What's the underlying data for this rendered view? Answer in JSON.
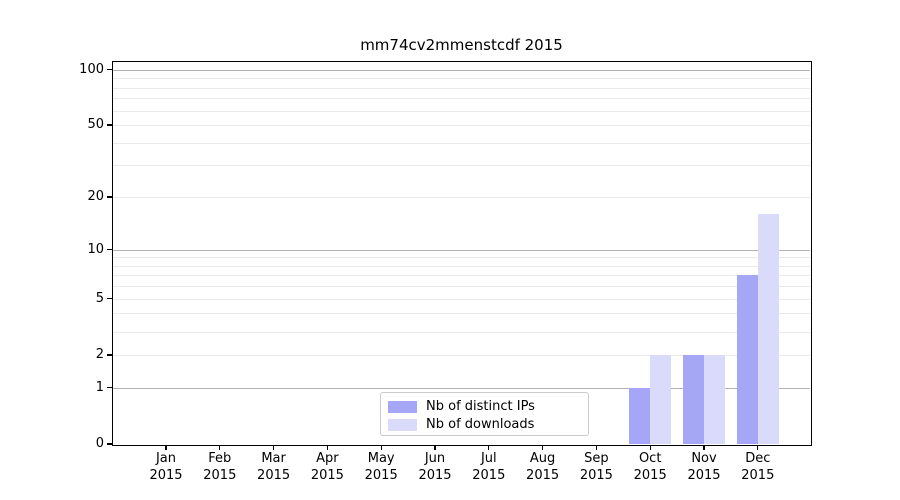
{
  "title": "mm74cv2mmenstcdf 2015",
  "chart_data": {
    "type": "bar",
    "title": "mm74cv2mmenstcdf 2015",
    "categories": [
      "Jan 2015",
      "Feb 2015",
      "Mar 2015",
      "Apr 2015",
      "May 2015",
      "Jun 2015",
      "Jul 2015",
      "Aug 2015",
      "Sep 2015",
      "Oct 2015",
      "Nov 2015",
      "Dec 2015"
    ],
    "series": [
      {
        "name": "Nb of distinct IPs",
        "color": "#a6a6f6",
        "values": [
          0,
          0,
          0,
          0,
          0,
          0,
          0,
          0,
          0,
          1,
          2,
          7
        ]
      },
      {
        "name": "Nb of downloads",
        "color": "#dadafa",
        "values": [
          0,
          0,
          0,
          0,
          0,
          0,
          0,
          0,
          0,
          2,
          2,
          16
        ]
      }
    ],
    "xlabel": "",
    "ylabel": "",
    "y_scale": "log10(1+y)",
    "ylim": [
      0,
      110
    ],
    "y_tick_values": [
      0,
      1,
      2,
      5,
      10,
      20,
      50,
      100
    ],
    "y_tick_labels": [
      "0",
      "1",
      "2",
      "5",
      "10",
      "20",
      "50",
      "100"
    ],
    "grid_major_values": [
      1,
      10,
      100
    ],
    "grid_minor_values": [
      2,
      3,
      4,
      5,
      6,
      7,
      8,
      9,
      20,
      30,
      40,
      50,
      60,
      70,
      80,
      90
    ],
    "legend": {
      "entries": [
        "Nb of distinct IPs",
        "Nb of downloads"
      ],
      "position": "lower center (inside plot)"
    },
    "colors": {
      "bar_distinct_ips": "#a6a6f6",
      "bar_downloads": "#dadafa",
      "grid_major": "#b3b3b3",
      "grid_minor": "#eaeaea",
      "axis": "#000000",
      "background": "#ffffff"
    }
  }
}
